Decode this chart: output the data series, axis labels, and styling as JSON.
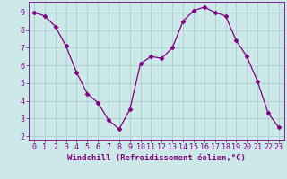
{
  "x": [
    0,
    1,
    2,
    3,
    4,
    5,
    6,
    7,
    8,
    9,
    10,
    11,
    12,
    13,
    14,
    15,
    16,
    17,
    18,
    19,
    20,
    21,
    22,
    23
  ],
  "y": [
    9.0,
    8.8,
    8.2,
    7.1,
    5.6,
    4.4,
    3.9,
    2.9,
    2.4,
    3.5,
    6.1,
    6.5,
    6.4,
    7.0,
    8.5,
    9.1,
    9.3,
    9.0,
    8.8,
    7.4,
    6.5,
    5.1,
    3.3,
    2.5
  ],
  "line_color": "#800080",
  "marker": "D",
  "marker_size": 2.5,
  "bg_color": "#cce8e8",
  "grid_color": "#aacfcf",
  "xlabel": "Windchill (Refroidissement éolien,°C)",
  "xlabel_color": "#800080",
  "tick_color": "#800080",
  "xlim": [
    -0.5,
    23.5
  ],
  "ylim": [
    1.8,
    9.6
  ],
  "yticks": [
    2,
    3,
    4,
    5,
    6,
    7,
    8,
    9
  ],
  "xticks": [
    0,
    1,
    2,
    3,
    4,
    5,
    6,
    7,
    8,
    9,
    10,
    11,
    12,
    13,
    14,
    15,
    16,
    17,
    18,
    19,
    20,
    21,
    22,
    23
  ],
  "label_fontsize": 6.5,
  "tick_fontsize": 6
}
